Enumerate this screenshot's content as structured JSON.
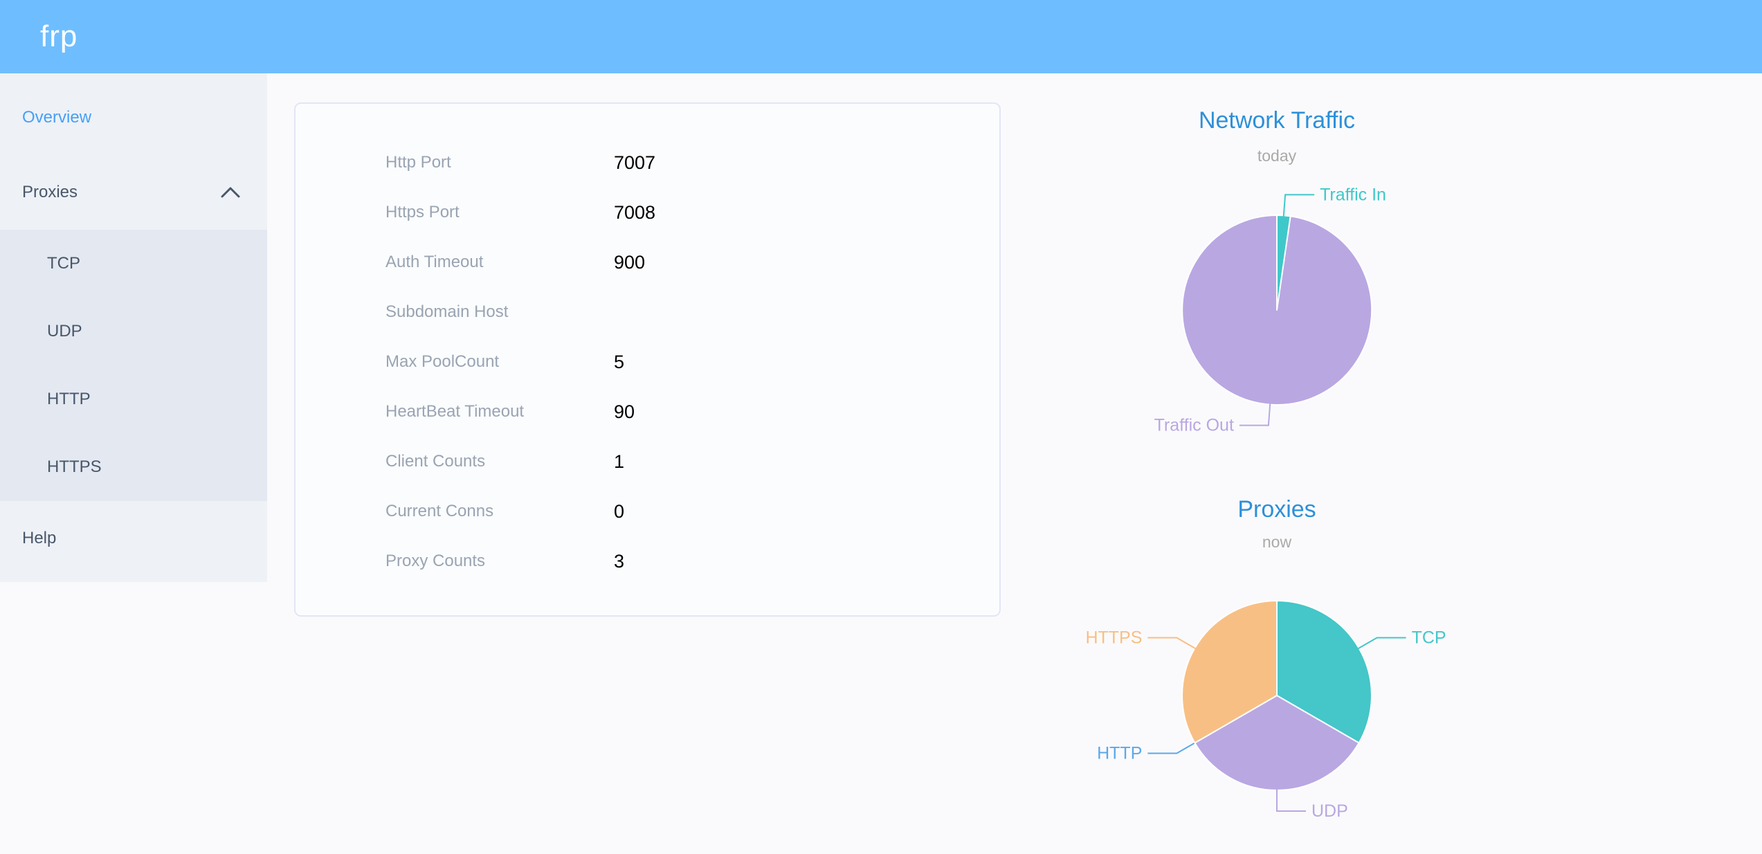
{
  "header": {
    "logo_text": "frp"
  },
  "colors": {
    "header_bg": "#6ebeff",
    "sidebar_bg": "#eef1f6",
    "submenu_bg": "#e4e8f1",
    "menu_text": "#48576a",
    "active_menu_text": "#46a0f7",
    "page_bg": "#fafafc",
    "card_border": "#e2e6f5",
    "info_label_text": "#99a4b2",
    "info_value_text": "#000000",
    "chart_title": "#2d90d8",
    "chart_subtitle": "#a9a9a9",
    "teal": "#43c8c9",
    "purple": "#b9a7e2",
    "orange": "#f8bf84",
    "http_blue": "#5ba8ea"
  },
  "sidebar": {
    "items": [
      {
        "label": "Overview",
        "active": true
      },
      {
        "label": "Proxies",
        "expanded": true,
        "children": [
          "TCP",
          "UDP",
          "HTTP",
          "HTTPS"
        ]
      },
      {
        "label": "Help",
        "active": false
      }
    ]
  },
  "server_info": {
    "rows": [
      {
        "label": "Http Port",
        "value": "7007"
      },
      {
        "label": "Https Port",
        "value": "7008"
      },
      {
        "label": "Auth Timeout",
        "value": "900"
      },
      {
        "label": "Subdomain Host",
        "value": ""
      },
      {
        "label": "Max PoolCount",
        "value": "5"
      },
      {
        "label": "HeartBeat Timeout",
        "value": "90"
      },
      {
        "label": "Client Counts",
        "value": "1"
      },
      {
        "label": "Current Conns",
        "value": "0"
      },
      {
        "label": "Proxy Counts",
        "value": "3"
      }
    ]
  },
  "chart_data": [
    {
      "type": "pie",
      "title": "Network Traffic",
      "subtitle": "today",
      "legend_position": "callout-labels",
      "unit": "percent_of_total_estimated",
      "series": [
        {
          "name": "Traffic In",
          "value": 2.3,
          "color": "#3fc8c9"
        },
        {
          "name": "Traffic Out",
          "value": 97.7,
          "color": "#b9a7e2"
        }
      ]
    },
    {
      "type": "pie",
      "title": "Proxies",
      "subtitle": "now",
      "legend_position": "callout-labels",
      "unit": "proxy_count",
      "series": [
        {
          "name": "TCP",
          "value": 1,
          "color": "#45c6c8"
        },
        {
          "name": "UDP",
          "value": 1,
          "color": "#b9a7e2"
        },
        {
          "name": "HTTP",
          "value": 0,
          "color": "#5ba8ea"
        },
        {
          "name": "HTTPS",
          "value": 1,
          "color": "#f8bf84"
        }
      ]
    }
  ]
}
